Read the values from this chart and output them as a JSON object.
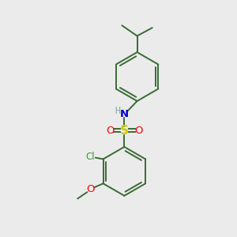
{
  "bg_color": "#ebebeb",
  "bond_color": "#3a6b35",
  "S_color": "#cccc00",
  "O_color": "#ff0000",
  "N_color": "#0000cc",
  "Cl_color": "#3a9a35",
  "H_color": "#8aaa9a",
  "methoxy_O_color": "#ff0000",
  "line_width": 1.4,
  "figsize": [
    3.0,
    3.0
  ],
  "dpi": 100,
  "xlim": [
    0,
    10
  ],
  "ylim": [
    0,
    10
  ]
}
